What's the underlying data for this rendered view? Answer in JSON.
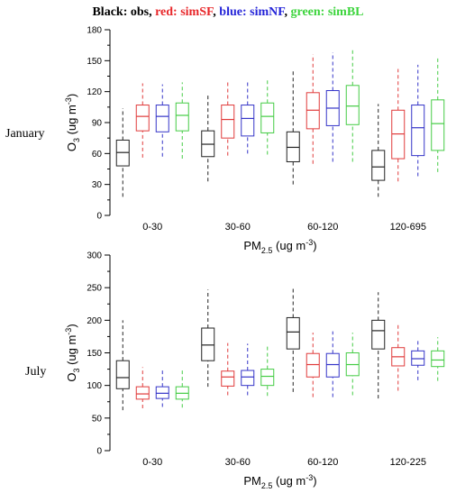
{
  "title_parts": [
    {
      "text": "Black: obs, ",
      "color": "#000000"
    },
    {
      "text": "red: simSF",
      "color": "#e8272a"
    },
    {
      "text": ", ",
      "color": "#000000"
    },
    {
      "text": "blue: simNF",
      "color": "#2424d8"
    },
    {
      "text": ", ",
      "color": "#000000"
    },
    {
      "text": "green: simBL",
      "color": "#3cd43c"
    }
  ],
  "series_colors": [
    "#222222",
    "#e03a3a",
    "#3535c8",
    "#44cc44"
  ],
  "chart_data": [
    {
      "type": "box",
      "panel_label": "January",
      "xlabel": "PM2.5 (ug m-3)",
      "ylabel": "O3 (ug m-3)",
      "ylim": [
        0,
        180
      ],
      "yticks": [
        0,
        30,
        60,
        90,
        120,
        150,
        180
      ],
      "grid": false,
      "categories": [
        "0-30",
        "30-60",
        "60-120",
        "120-695"
      ],
      "series": [
        {
          "boxes": [
            [
              18,
              48,
              61,
              73,
              104
            ],
            [
              33,
              57,
              69,
              82,
              117
            ],
            [
              30,
              52,
              66,
              81,
              140
            ],
            [
              18,
              34,
              47,
              63,
              108
            ]
          ]
        },
        {
          "boxes": [
            [
              56,
              82,
              96,
              107,
              128
            ],
            [
              58,
              75,
              93,
              107,
              130
            ],
            [
              50,
              84,
              102,
              119,
              156
            ],
            [
              33,
              55,
              79,
              102,
              142
            ]
          ]
        },
        {
          "boxes": [
            [
              57,
              81,
              96,
              107,
              127
            ],
            [
              60,
              77,
              94,
              107,
              131
            ],
            [
              52,
              87,
              104,
              121,
              158
            ],
            [
              38,
              58,
              85,
              107,
              146
            ]
          ]
        },
        {
          "boxes": [
            [
              55,
              82,
              97,
              109,
              129
            ],
            [
              59,
              80,
              96,
              109,
              133
            ],
            [
              52,
              88,
              106,
              126,
              162
            ],
            [
              42,
              63,
              89,
              112,
              154
            ]
          ]
        }
      ]
    },
    {
      "type": "box",
      "panel_label": "July",
      "xlabel": "PM2.5 (ug m-3)",
      "ylabel": "O3 (ug m-3)",
      "ylim": [
        0,
        300
      ],
      "yticks": [
        0,
        50,
        100,
        150,
        200,
        250,
        300
      ],
      "grid": false,
      "categories": [
        "0-30",
        "30-60",
        "60-120",
        "120-225"
      ],
      "series": [
        {
          "boxes": [
            [
              62,
              95,
              112,
              138,
              200
            ],
            [
              98,
              138,
              162,
              188,
              247
            ],
            [
              90,
              156,
              182,
              204,
              252
            ],
            [
              80,
              156,
              184,
              200,
              243
            ]
          ]
        },
        {
          "boxes": [
            [
              65,
              79,
              87,
              98,
              128
            ],
            [
              85,
              99,
              113,
              122,
              165
            ],
            [
              82,
              113,
              132,
              149,
              181
            ],
            [
              92,
              130,
              144,
              158,
              195
            ]
          ]
        },
        {
          "boxes": [
            [
              67,
              80,
              88,
              98,
              127
            ],
            [
              85,
              100,
              113,
              123,
              164
            ],
            [
              82,
              113,
              132,
              149,
              183
            ],
            [
              108,
              131,
              141,
              153,
              172
            ]
          ]
        },
        {
          "boxes": [
            [
              66,
              79,
              88,
              98,
              127
            ],
            [
              84,
              100,
              114,
              125,
              163
            ],
            [
              85,
              115,
              132,
              150,
              181
            ],
            [
              107,
              129,
              139,
              153,
              174
            ]
          ]
        }
      ]
    }
  ]
}
